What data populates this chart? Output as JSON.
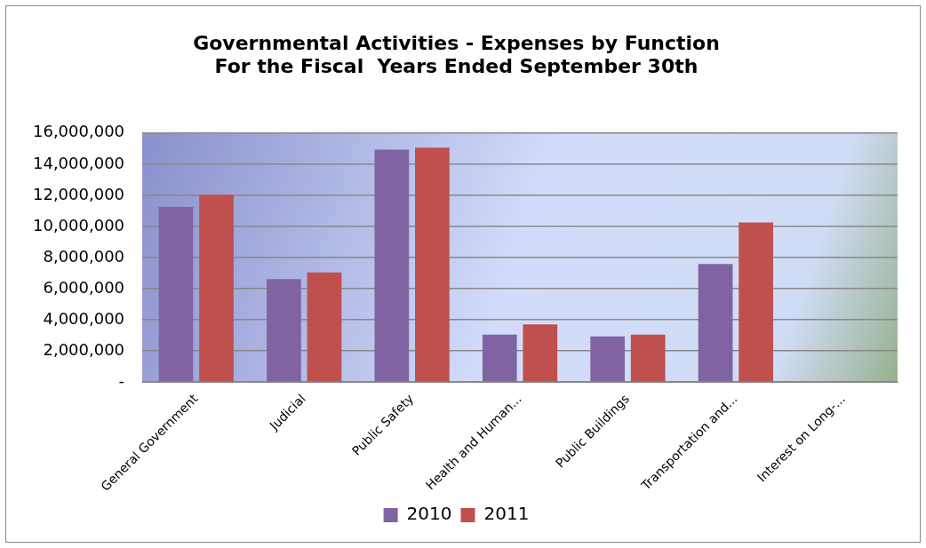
{
  "chart_data": {
    "type": "bar",
    "title": [
      "Governmental Activities - Expenses by Function",
      "For the Fiscal  Years Ended September 30th"
    ],
    "categories": [
      "General Government",
      "Judicial",
      "Public Safety",
      "Health and Human...",
      "Public Buildings",
      "Transportation and...",
      "Interest on Long-..."
    ],
    "series": [
      {
        "name": "2010",
        "color": "#8064a2",
        "values": [
          11260000,
          6610000,
          14940000,
          3050000,
          2930000,
          7590000,
          null
        ]
      },
      {
        "name": "2011",
        "color": "#c0504d",
        "values": [
          12040000,
          7040000,
          15060000,
          3710000,
          3050000,
          10260000,
          null
        ]
      }
    ],
    "ylim": [
      0,
      16000000
    ],
    "yticks": [
      {
        "value": 0,
        "label": "-"
      },
      {
        "value": 2000000,
        "label": "2,000,000"
      },
      {
        "value": 4000000,
        "label": "4,000,000"
      },
      {
        "value": 6000000,
        "label": "6,000,000"
      },
      {
        "value": 8000000,
        "label": "8,000,000"
      },
      {
        "value": 10000000,
        "label": "10,000,000"
      },
      {
        "value": 12000000,
        "label": "12,000,000"
      },
      {
        "value": 14000000,
        "label": "14,000,000"
      },
      {
        "value": 16000000,
        "label": "16,000,000"
      }
    ],
    "grid": "y",
    "legend": "bottom"
  }
}
